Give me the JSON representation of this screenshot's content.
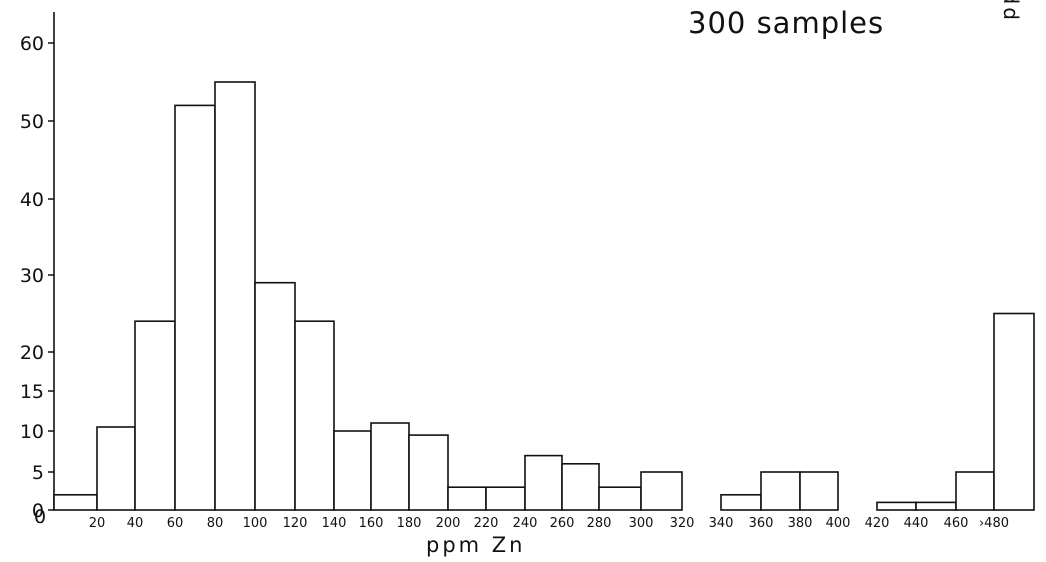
{
  "chart_data": {
    "type": "bar",
    "title": "300 samples",
    "xlabel": "ppm Zn",
    "ylabel": "",
    "ylim": [
      0,
      65
    ],
    "yticks": [
      0,
      5,
      10,
      15,
      20,
      30,
      40,
      50,
      60
    ],
    "xticks": [
      "20",
      "40",
      "60",
      "80",
      "100",
      "120",
      "140",
      "160",
      "180",
      "200",
      "220",
      "240",
      "260",
      "280",
      "300",
      "320",
      "340",
      "360",
      "380",
      "400",
      "420",
      "440",
      "460",
      "›480"
    ],
    "bins": [
      {
        "from": 0,
        "to": 20,
        "value": 2
      },
      {
        "from": 20,
        "to": 40,
        "value": 10.5
      },
      {
        "from": 40,
        "to": 60,
        "value": 24
      },
      {
        "from": 60,
        "to": 80,
        "value": 52
      },
      {
        "from": 80,
        "to": 100,
        "value": 55
      },
      {
        "from": 100,
        "to": 120,
        "value": 29
      },
      {
        "from": 120,
        "to": 140,
        "value": 24
      },
      {
        "from": 140,
        "to": 160,
        "value": 10
      },
      {
        "from": 160,
        "to": 180,
        "value": 11
      },
      {
        "from": 180,
        "to": 200,
        "value": 9.5
      },
      {
        "from": 200,
        "to": 220,
        "value": 3
      },
      {
        "from": 220,
        "to": 240,
        "value": 3
      },
      {
        "from": 240,
        "to": 260,
        "value": 7
      },
      {
        "from": 260,
        "to": 280,
        "value": 6
      },
      {
        "from": 280,
        "to": 300,
        "value": 3
      },
      {
        "from": 300,
        "to": 320,
        "value": 5
      },
      {
        "from": 320,
        "to": 340,
        "value": 0
      },
      {
        "from": 340,
        "to": 360,
        "value": 2
      },
      {
        "from": 360,
        "to": 380,
        "value": 5
      },
      {
        "from": 380,
        "to": 400,
        "value": 5
      },
      {
        "from": 400,
        "to": 420,
        "value": 0
      },
      {
        "from": 420,
        "to": 440,
        "value": 1
      },
      {
        "from": 440,
        "to": 460,
        "value": 1
      },
      {
        "from": 460,
        "to": 480,
        "value": 5
      },
      {
        "from": 480,
        "to": 500,
        "value": 25
      }
    ]
  },
  "cut_off_label": "ppm Zn",
  "colors": {
    "ink": "#111111",
    "bar_fill": "#ffffff"
  }
}
